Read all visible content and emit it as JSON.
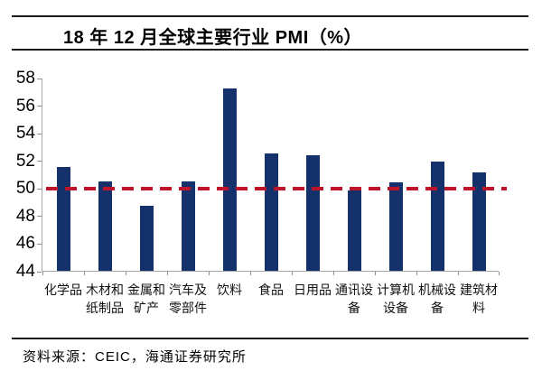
{
  "header": {
    "title": "18 年 12 月全球主要行业 PMI（%）"
  },
  "chart_data": {
    "type": "bar",
    "title": "18 年 12 月全球主要行业 PMI（%）",
    "categories": [
      "化学品",
      "木材和纸制品",
      "金属和矿产",
      "汽车及零部件",
      "饮料",
      "食品",
      "日用品",
      "通讯设备",
      "计算机设备",
      "机械设备",
      "建筑材料"
    ],
    "category_label_lines": [
      [
        "化学品"
      ],
      [
        "木材和",
        "纸制品"
      ],
      [
        "金属和",
        "矿产"
      ],
      [
        "汽车及",
        "零部件"
      ],
      [
        "饮料"
      ],
      [
        "食品"
      ],
      [
        "日用品"
      ],
      [
        "通讯设",
        "备"
      ],
      [
        "计算机",
        "设备"
      ],
      [
        "机械设",
        "备"
      ],
      [
        "建筑材",
        "料"
      ]
    ],
    "values": [
      51.5,
      50.5,
      48.7,
      50.5,
      57.2,
      52.5,
      52.4,
      49.8,
      50.4,
      51.9,
      51.1
    ],
    "xlabel": "",
    "ylabel": "",
    "ylim": [
      44,
      58
    ],
    "yticks": [
      58,
      56,
      54,
      52,
      50,
      48,
      46,
      44
    ],
    "reference_line": {
      "value": 50,
      "style": "dashed",
      "color": "#be1328"
    },
    "bar_color": "#14316b",
    "axis_color": "#a6a6a6",
    "grid": false,
    "legend": "none"
  },
  "footer": {
    "source": "资料来源：CEIC，海通证券研究所"
  }
}
